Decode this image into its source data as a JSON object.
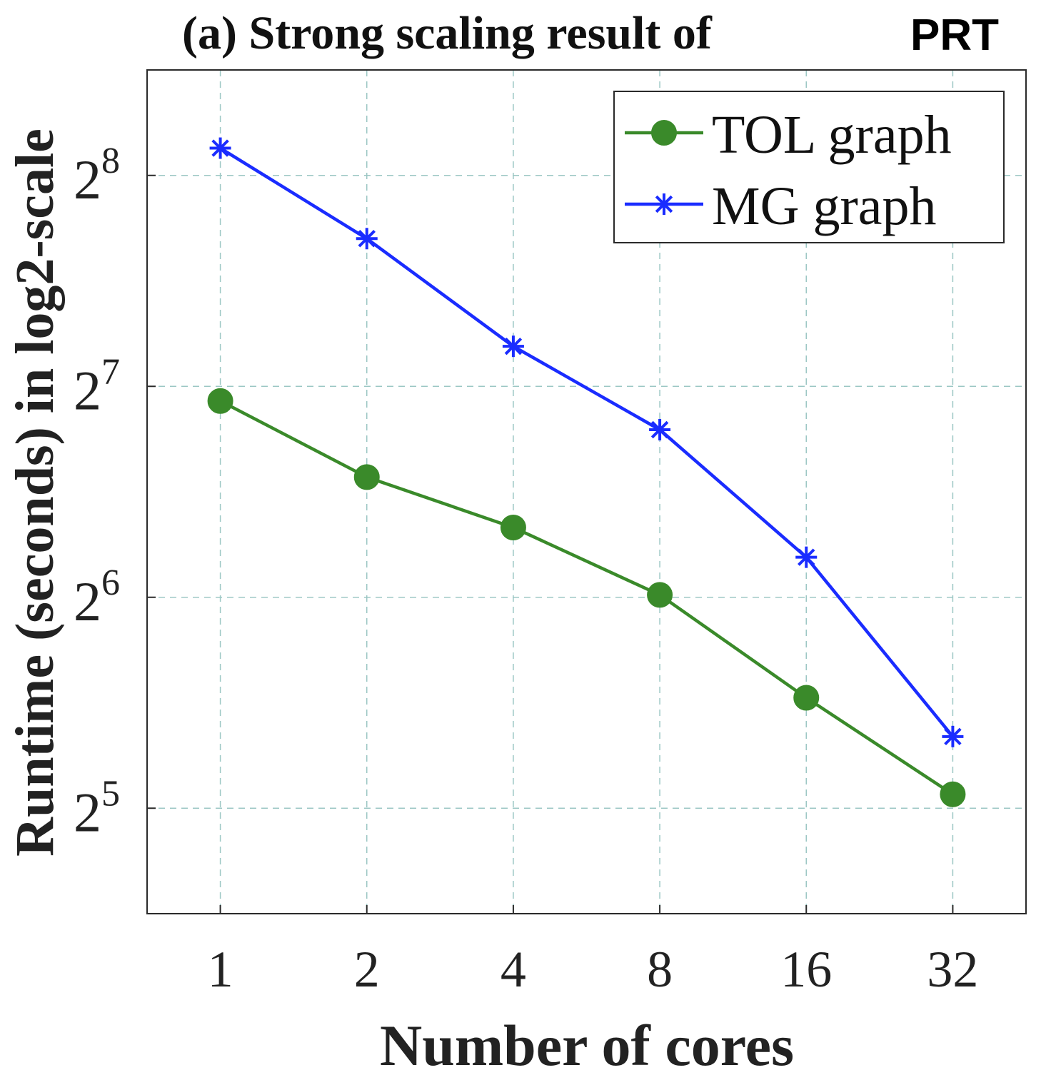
{
  "chart_data": {
    "type": "line",
    "title": "(a) Strong scaling result of",
    "title_suffix": "PRT",
    "xlabel": "Number of cores",
    "ylabel": "Runtime (seconds) in log2-scale",
    "x_scale": "log2",
    "y_scale": "log2",
    "categories": [
      "1",
      "2",
      "4",
      "8",
      "16",
      "32"
    ],
    "x": [
      1,
      2,
      4,
      8,
      16,
      32
    ],
    "y_ticks": [
      {
        "base": "2",
        "exponent": "5",
        "value": 32
      },
      {
        "base": "2",
        "exponent": "6",
        "value": 64
      },
      {
        "base": "2",
        "exponent": "7",
        "value": 128
      },
      {
        "base": "2",
        "exponent": "8",
        "value": 256
      }
    ],
    "xlim_log2": [
      -0.5,
      5.5
    ],
    "ylim_log2": [
      4.5,
      8.5
    ],
    "grid": true,
    "legend_position": "top-right",
    "series": [
      {
        "name": "TOL graph",
        "color": "#3a8a2a",
        "marker": "circle",
        "values": [
          122,
          95,
          80.5,
          64.5,
          46,
          33.5
        ]
      },
      {
        "name": "MG graph",
        "color": "#1a2cff",
        "marker": "asterisk",
        "values": [
          280,
          208,
          146,
          111,
          73,
          40.5
        ]
      }
    ]
  }
}
